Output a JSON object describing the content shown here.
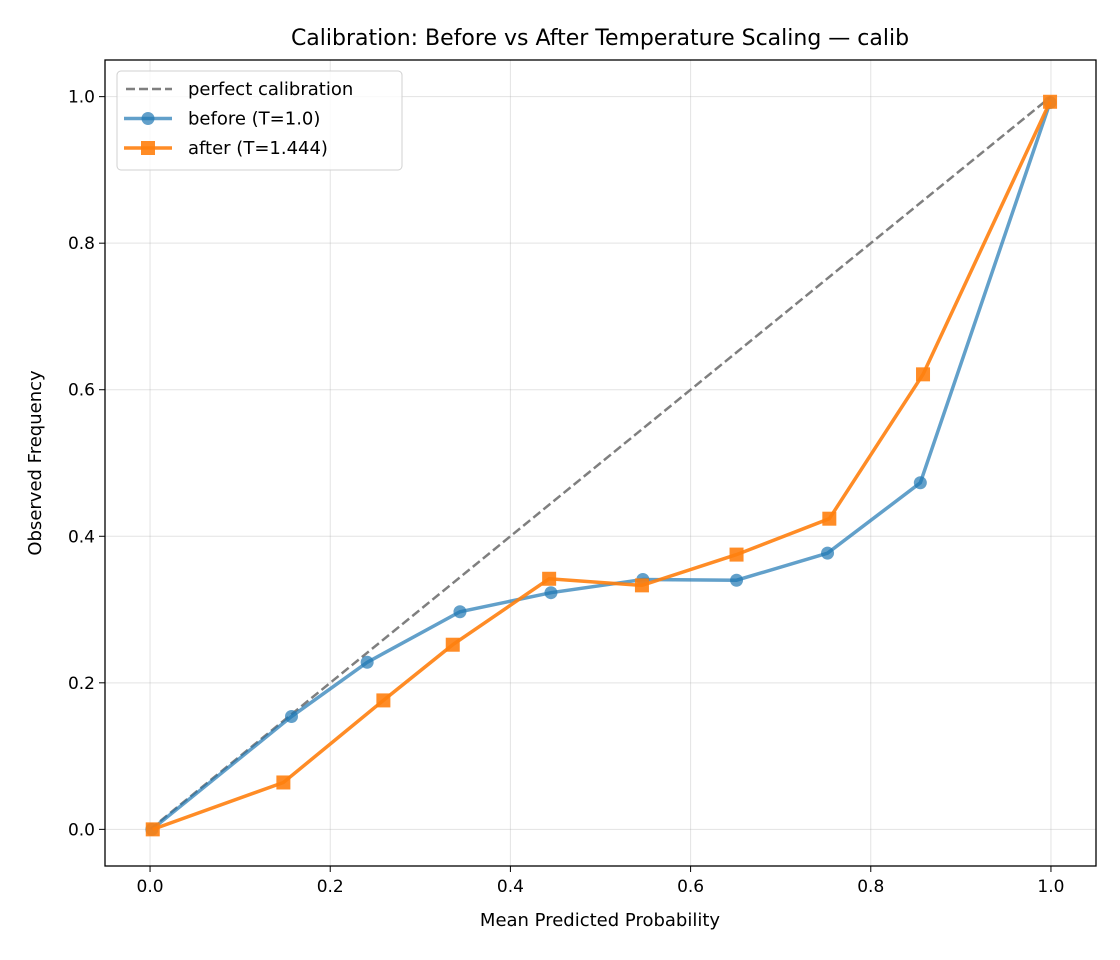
{
  "chart_data": {
    "type": "line",
    "title": "Calibration: Before vs After Temperature Scaling — calib",
    "xlabel": "Mean Predicted Probability",
    "ylabel": "Observed Frequency",
    "xlim": [
      -0.05,
      1.05
    ],
    "ylim": [
      -0.05,
      1.05
    ],
    "xticks": [
      "0.0",
      "0.2",
      "0.4",
      "0.6",
      "0.8",
      "1.0"
    ],
    "yticks": [
      "0.0",
      "0.2",
      "0.4",
      "0.6",
      "0.8",
      "1.0"
    ],
    "grid": true,
    "legend_position": "top-left",
    "series": [
      {
        "name": "perfect calibration",
        "style": "dashed",
        "color": "#7f7f7f",
        "x": [
          0,
          1
        ],
        "y": [
          0,
          1
        ]
      },
      {
        "name": "before (T=1.0)",
        "marker": "circle",
        "color": "#1f77b4",
        "x": [
          0.002,
          0.157,
          0.241,
          0.344,
          0.445,
          0.547,
          0.651,
          0.752,
          0.855,
          0.999
        ],
        "y": [
          0.0,
          0.154,
          0.228,
          0.297,
          0.323,
          0.341,
          0.34,
          0.377,
          0.473,
          0.992
        ]
      },
      {
        "name": "after (T=1.444)",
        "marker": "square",
        "color": "#ff7f0e",
        "x": [
          0.003,
          0.148,
          0.259,
          0.336,
          0.443,
          0.546,
          0.651,
          0.754,
          0.858,
          0.999
        ],
        "y": [
          0.0,
          0.064,
          0.176,
          0.252,
          0.342,
          0.333,
          0.375,
          0.424,
          0.621,
          0.993
        ]
      }
    ]
  }
}
